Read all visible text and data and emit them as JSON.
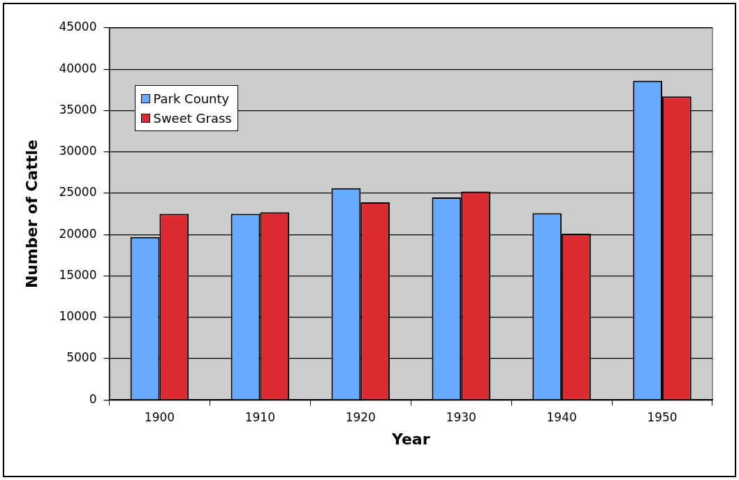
{
  "chart_data": {
    "type": "bar",
    "xlabel": "Year",
    "ylabel": "Number of Cattle",
    "categories": [
      "1900",
      "1910",
      "1920",
      "1930",
      "1940",
      "1950"
    ],
    "series": [
      {
        "name": "Park County",
        "color": "#66aaff",
        "values": [
          19700,
          22500,
          25600,
          24500,
          22600,
          38600
        ]
      },
      {
        "name": "Sweet Grass",
        "color": "#dd2b33",
        "values": [
          22500,
          22700,
          23900,
          25200,
          20100,
          36700
        ]
      }
    ],
    "ylim": [
      0,
      45000
    ],
    "yticks": [
      0,
      5000,
      10000,
      15000,
      20000,
      25000,
      30000,
      35000,
      40000,
      45000
    ],
    "grid": "y",
    "legend": "top left"
  }
}
